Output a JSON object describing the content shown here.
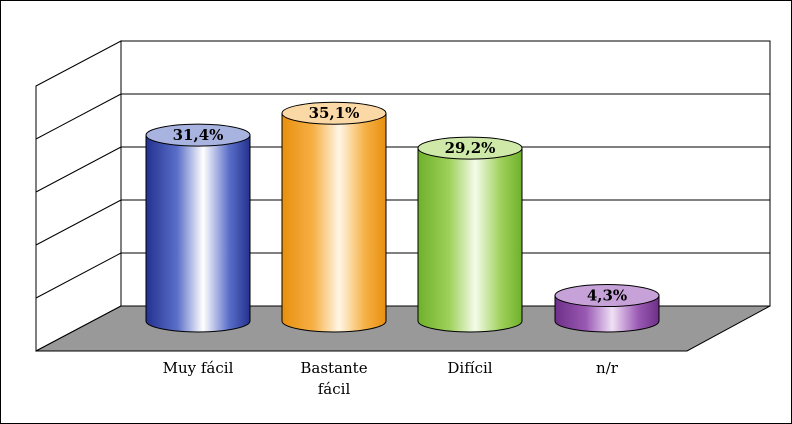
{
  "chart_data": {
    "type": "bar",
    "style": "3d-cylinder",
    "categories": [
      [
        "Muy fácil"
      ],
      [
        "Bastante",
        "fácil"
      ],
      [
        "Difícil"
      ],
      [
        "n/r"
      ]
    ],
    "values": [
      31.4,
      35.1,
      29.2,
      4.3
    ],
    "data_labels": [
      "31,4%",
      "35,1%",
      "29,2%",
      "4,3%"
    ],
    "colors": [
      {
        "dark": "#23328f",
        "mid": "#5a6ec8",
        "light": "#ffffff",
        "top": "#a9b3e0"
      },
      {
        "dark": "#e8900e",
        "mid": "#f6b045",
        "light": "#fff6e6",
        "top": "#fbd9a6"
      },
      {
        "dark": "#6fb12b",
        "mid": "#9ed05a",
        "light": "#f4fbe9",
        "top": "#cfe9a9"
      },
      {
        "dark": "#6d2f87",
        "mid": "#9a5ab4",
        "light": "#efe0f5",
        "top": "#c7a2d8"
      }
    ],
    "floor_color": "#999999",
    "ylim": [
      0,
      50
    ],
    "grid": true,
    "gridlines": 6,
    "title": "",
    "xlabel": "",
    "ylabel": "",
    "legend": "none"
  }
}
